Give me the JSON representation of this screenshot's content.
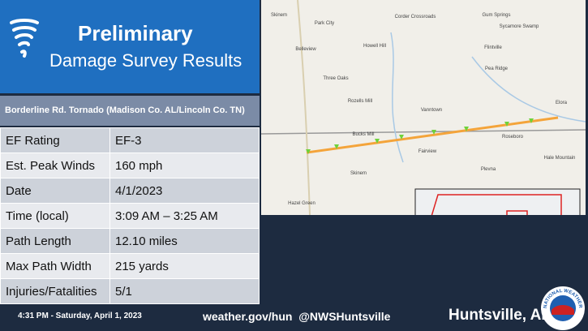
{
  "header": {
    "title": "Preliminary",
    "subtitle": "Damage Survey Results"
  },
  "table": {
    "caption": "Borderline Rd. Tornado (Madison Co. AL/Lincoln Co. TN)",
    "rows": [
      [
        "EF Rating",
        "EF-3"
      ],
      [
        "Est. Peak Winds",
        "160 mph"
      ],
      [
        "Date",
        "4/1/2023"
      ],
      [
        "Time (local)",
        "3:09 AM – 3:25 AM"
      ],
      [
        "Path Length",
        "12.10 miles"
      ],
      [
        "Max Path Width",
        "215 yards"
      ],
      [
        "Injuries/Fatalities",
        "5/1"
      ]
    ]
  },
  "map": {
    "labels": [
      "Skinem",
      "Park City",
      "Corder Crossroads",
      "Gum Springs",
      "Sycamore Swamp",
      "Belleview",
      "Howell Hill",
      "Flintville",
      "Pea Ridge",
      "Three Oaks",
      "Rozells Mill",
      "Vanntown",
      "Elora",
      "Bucks Mill",
      "Roseboro",
      "Fairview",
      "Hale Mountain",
      "Skinem",
      "Plevna",
      "Hazel Green"
    ]
  },
  "footer": {
    "timestamp": "4:31 PM - Saturday, April 1, 2023",
    "links": "weather.gov/hun  @NWSHuntsville",
    "office": "Huntsville, AL",
    "logo": "NATIONAL WEATHER SERVICE"
  }
}
